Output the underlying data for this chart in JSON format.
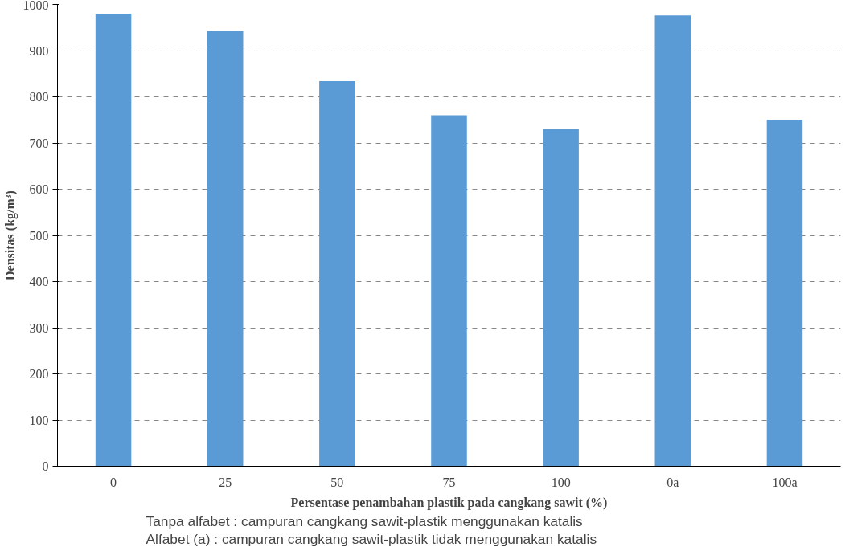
{
  "chart_data": {
    "type": "bar",
    "xlabel": "Persentase penambahan plastik pada cangkang sawit (%)",
    "ylabel": "Densitas (kg/m³)",
    "categories": [
      "0",
      "25",
      "50",
      "75",
      "100",
      "0a",
      "100a"
    ],
    "values": [
      980,
      943,
      834,
      760,
      731,
      976,
      750
    ],
    "color": "#5b9bd5",
    "ylim": [
      0,
      1000
    ],
    "yticks": [
      0,
      100,
      200,
      300,
      400,
      500,
      600,
      700,
      800,
      900,
      1000
    ],
    "grid": "y",
    "annotations": [
      "Tanpa alfabet : campuran cangkang sawit-plastik menggunakan katalis",
      "Alfabet (a) : campuran cangkang sawit-plastik tidak menggunakan katalis"
    ]
  }
}
